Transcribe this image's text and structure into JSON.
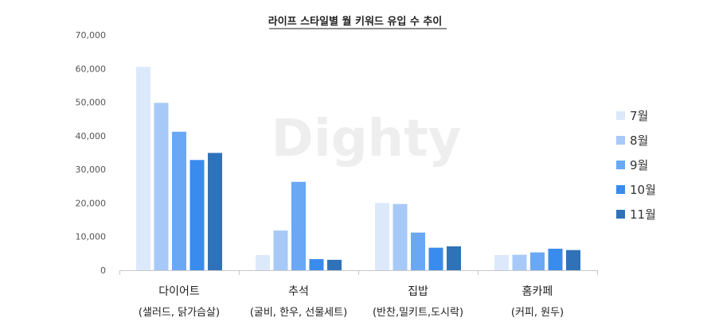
{
  "watermark": "Dighty",
  "chart_data": {
    "type": "bar",
    "title": "라이프 스타일별 월 키워드 유입 수 추이",
    "categories": [
      "다이어트",
      "추석",
      "집밥",
      "홈카페"
    ],
    "category_sublabels": [
      "(샐러드, 닭가슴살)",
      "(굴비, 한우, 선물세트)",
      "(반찬,밀키트,도시락)",
      "(커피, 원두)"
    ],
    "series": [
      {
        "name": "7월",
        "color": "#dbe9fb",
        "values": [
          60500,
          4500,
          20000,
          4500
        ]
      },
      {
        "name": "8월",
        "color": "#a7c9f7",
        "values": [
          49800,
          11800,
          19700,
          4600
        ]
      },
      {
        "name": "9월",
        "color": "#6aa8f5",
        "values": [
          41200,
          26300,
          11200,
          5300
        ]
      },
      {
        "name": "10월",
        "color": "#3a8bee",
        "values": [
          32800,
          3300,
          6700,
          6400
        ]
      },
      {
        "name": "11월",
        "color": "#2f72b8",
        "values": [
          34900,
          3100,
          7100,
          6000
        ]
      }
    ],
    "yticks": [
      "0",
      "10,000",
      "20,000",
      "30,000",
      "40,000",
      "50,000",
      "60,000",
      "70,000"
    ],
    "ylim": [
      0,
      70000
    ],
    "legend_position": "right",
    "grid": false
  }
}
